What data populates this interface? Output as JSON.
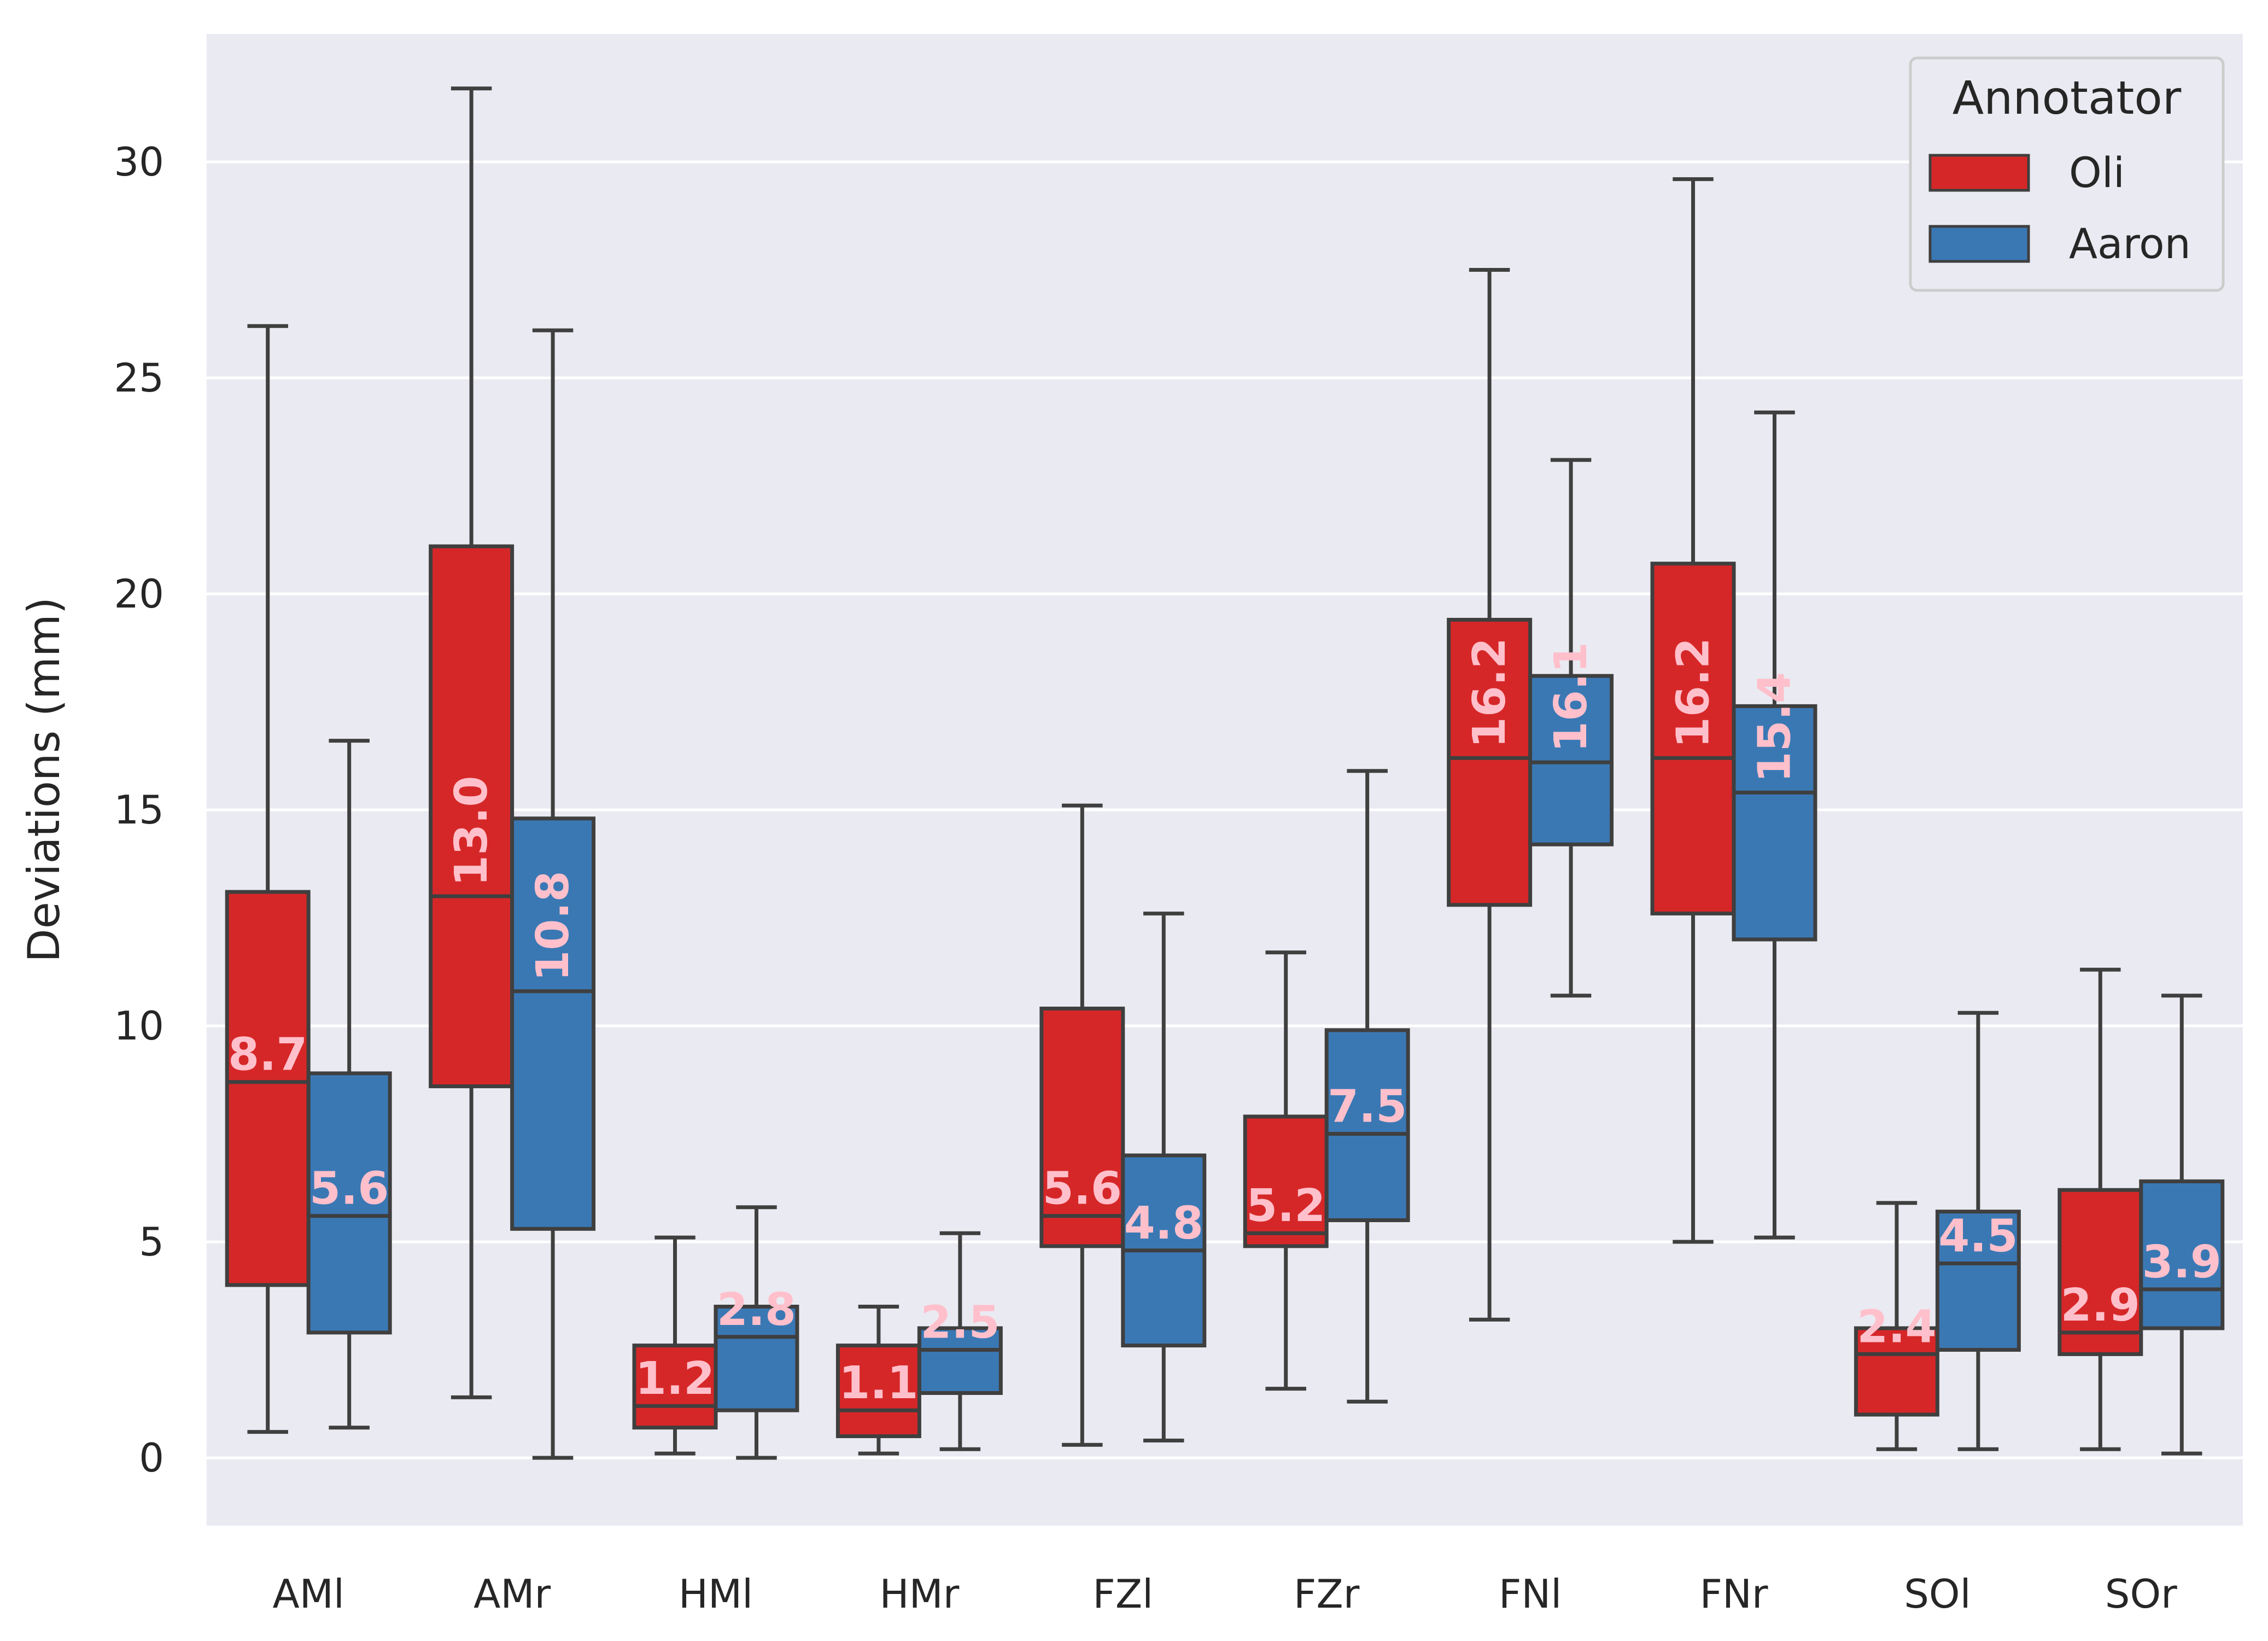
{
  "chart_data": {
    "type": "box",
    "title": "",
    "xlabel": "",
    "ylabel": "Deviations (mm)",
    "ylim": [
      -1.5,
      33
    ],
    "yticks": [
      0,
      5,
      10,
      15,
      20,
      25,
      30
    ],
    "grid": true,
    "categories": [
      "AMl",
      "AMr",
      "HMl",
      "HMr",
      "FZl",
      "FZr",
      "FNl",
      "FNr",
      "SOl",
      "SOr"
    ],
    "legend": {
      "title": "Annotator",
      "placement": "top-right"
    },
    "series": [
      {
        "name": "Oli",
        "color": "#d62728",
        "boxes": [
          {
            "whislo": 0.6,
            "q1": 4.0,
            "med": 8.7,
            "q3": 13.1,
            "whishi": 26.2,
            "label": "8.7"
          },
          {
            "whislo": 1.4,
            "q1": 8.6,
            "med": 13.0,
            "q3": 21.1,
            "whishi": 31.7,
            "label": "13.0"
          },
          {
            "whislo": 0.1,
            "q1": 0.7,
            "med": 1.2,
            "q3": 2.6,
            "whishi": 5.1,
            "label": "1.2"
          },
          {
            "whislo": 0.1,
            "q1": 0.5,
            "med": 1.1,
            "q3": 2.6,
            "whishi": 3.5,
            "label": "1.1"
          },
          {
            "whislo": 0.3,
            "q1": 4.9,
            "med": 5.6,
            "q3": 10.4,
            "whishi": 15.1,
            "label": "5.6"
          },
          {
            "whislo": 1.6,
            "q1": 4.9,
            "med": 5.2,
            "q3": 7.9,
            "whishi": 11.7,
            "label": "5.2"
          },
          {
            "whislo": 3.2,
            "q1": 12.8,
            "med": 16.2,
            "q3": 19.4,
            "whishi": 27.5,
            "label": "16.2"
          },
          {
            "whislo": 5.0,
            "q1": 12.6,
            "med": 16.2,
            "q3": 20.7,
            "whishi": 29.6,
            "label": "16.2"
          },
          {
            "whislo": 0.2,
            "q1": 1.0,
            "med": 2.4,
            "q3": 3.0,
            "whishi": 5.9,
            "label": "2.4"
          },
          {
            "whislo": 0.2,
            "q1": 2.4,
            "med": 2.9,
            "q3": 6.2,
            "whishi": 11.3,
            "label": "2.9"
          }
        ]
      },
      {
        "name": "Aaron",
        "color": "#3a78b4",
        "boxes": [
          {
            "whislo": 0.7,
            "q1": 2.9,
            "med": 5.6,
            "q3": 8.9,
            "whishi": 16.6,
            "label": "5.6"
          },
          {
            "whislo": 0.0,
            "q1": 5.3,
            "med": 10.8,
            "q3": 14.8,
            "whishi": 26.1,
            "label": "10.8"
          },
          {
            "whislo": 0.0,
            "q1": 1.1,
            "med": 2.8,
            "q3": 3.5,
            "whishi": 5.8,
            "label": "2.8"
          },
          {
            "whislo": 0.2,
            "q1": 1.5,
            "med": 2.5,
            "q3": 3.0,
            "whishi": 5.2,
            "label": "2.5"
          },
          {
            "whislo": 0.4,
            "q1": 2.6,
            "med": 4.8,
            "q3": 7.0,
            "whishi": 12.6,
            "label": "4.8"
          },
          {
            "whislo": 1.3,
            "q1": 5.5,
            "med": 7.5,
            "q3": 9.9,
            "whishi": 15.9,
            "label": "7.5"
          },
          {
            "whislo": 10.7,
            "q1": 14.2,
            "med": 16.1,
            "q3": 18.1,
            "whishi": 23.1,
            "label": "16.1"
          },
          {
            "whislo": 5.1,
            "q1": 12.0,
            "med": 15.4,
            "q3": 17.4,
            "whishi": 24.2,
            "label": "15.4"
          },
          {
            "whislo": 0.2,
            "q1": 2.5,
            "med": 4.5,
            "q3": 5.7,
            "whishi": 10.3,
            "label": "4.5"
          },
          {
            "whislo": 0.1,
            "q1": 3.0,
            "med": 3.9,
            "q3": 6.4,
            "whishi": 10.7,
            "label": "3.9"
          }
        ]
      }
    ]
  }
}
